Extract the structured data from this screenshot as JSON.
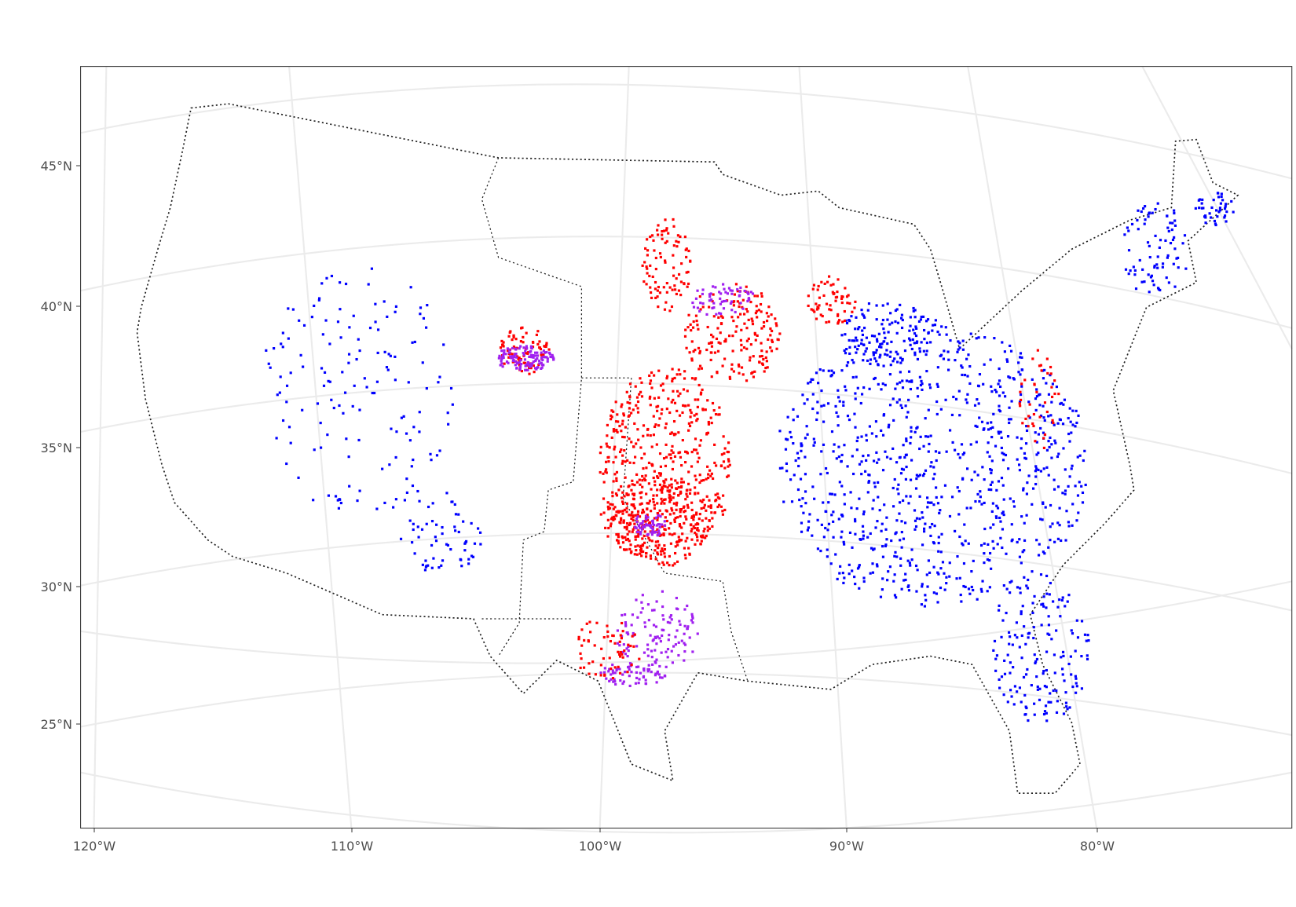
{
  "map": {
    "lat_labels": [
      "45°N",
      "40°N",
      "35°N",
      "30°N",
      "25°N"
    ],
    "lon_labels": [
      "120°W",
      "110°W",
      "100°W",
      "90°W",
      "80°W"
    ]
  }
}
